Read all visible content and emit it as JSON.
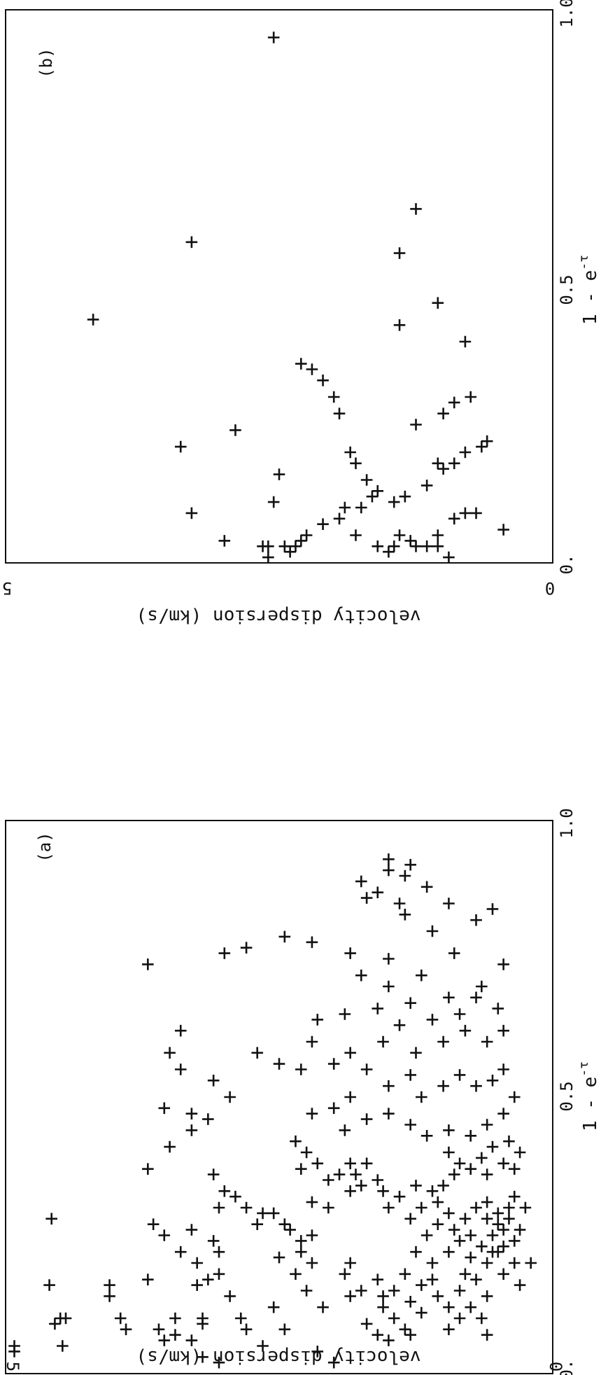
{
  "chart_data": [
    {
      "type": "scatter",
      "panel_label": "(a)",
      "xlabel": "1 - e^-τ",
      "xlabel_main": "1 - e",
      "xlabel_sup": "-τ",
      "ylabel": "velocity dispersion (km/s)",
      "xlim": [
        0,
        1
      ],
      "ylim": [
        0,
        5
      ],
      "x_tick_labels": [
        "0.",
        "0.5",
        "1.0"
      ],
      "y_tick_labels": [
        "0",
        "5"
      ],
      "points": [
        [
          0.04,
          4.92
        ],
        [
          0.05,
          4.92
        ],
        [
          0.09,
          4.55
        ],
        [
          0.1,
          4.5
        ],
        [
          0.1,
          4.45
        ],
        [
          0.05,
          4.48
        ],
        [
          0.16,
          4.6
        ],
        [
          0.28,
          4.58
        ],
        [
          0.14,
          4.05
        ],
        [
          0.16,
          4.05
        ],
        [
          0.1,
          3.95
        ],
        [
          0.08,
          3.9
        ],
        [
          0.17,
          3.7
        ],
        [
          0.08,
          3.6
        ],
        [
          0.06,
          3.55
        ],
        [
          0.1,
          3.45
        ],
        [
          0.07,
          3.45
        ],
        [
          0.1,
          3.2
        ],
        [
          0.17,
          3.15
        ],
        [
          0.09,
          3.2
        ],
        [
          0.16,
          3.25
        ],
        [
          0.06,
          3.3
        ],
        [
          0.03,
          3.2
        ],
        [
          0.02,
          3.05
        ],
        [
          0.14,
          2.95
        ],
        [
          0.1,
          2.85
        ],
        [
          0.08,
          2.8
        ],
        [
          0.05,
          2.65
        ],
        [
          0.12,
          2.55
        ],
        [
          0.08,
          2.45
        ],
        [
          0.15,
          2.25
        ],
        [
          0.18,
          2.35
        ],
        [
          0.2,
          2.2
        ],
        [
          0.04,
          2.15
        ],
        [
          0.12,
          2.1
        ],
        [
          0.02,
          2.0
        ],
        [
          0.3,
          2.8
        ],
        [
          0.29,
          2.55
        ],
        [
          0.27,
          2.7
        ],
        [
          0.29,
          2.65
        ],
        [
          0.27,
          2.45
        ],
        [
          0.21,
          2.5
        ],
        [
          0.26,
          2.4
        ],
        [
          0.22,
          2.3
        ],
        [
          0.31,
          2.2
        ],
        [
          0.3,
          2.05
        ],
        [
          0.24,
          2.3
        ],
        [
          0.25,
          2.2
        ],
        [
          0.18,
          1.9
        ],
        [
          0.14,
          1.85
        ],
        [
          0.2,
          1.85
        ],
        [
          0.15,
          1.75
        ],
        [
          0.09,
          1.7
        ],
        [
          0.07,
          1.6
        ],
        [
          0.12,
          1.55
        ],
        [
          0.06,
          1.5
        ],
        [
          0.17,
          1.6
        ],
        [
          0.14,
          1.55
        ],
        [
          0.15,
          1.45
        ],
        [
          0.1,
          1.45
        ],
        [
          0.08,
          1.35
        ],
        [
          0.07,
          1.3
        ],
        [
          0.13,
          1.3
        ],
        [
          0.11,
          1.2
        ],
        [
          0.16,
          1.2
        ],
        [
          0.17,
          1.1
        ],
        [
          0.2,
          1.1
        ],
        [
          0.14,
          1.05
        ],
        [
          0.12,
          0.95
        ],
        [
          0.08,
          0.95
        ],
        [
          0.1,
          0.85
        ],
        [
          0.15,
          0.85
        ],
        [
          0.18,
          0.8
        ],
        [
          0.21,
          0.75
        ],
        [
          0.17,
          0.7
        ],
        [
          0.12,
          0.75
        ],
        [
          0.1,
          0.65
        ],
        [
          0.07,
          0.6
        ],
        [
          0.14,
          0.6
        ],
        [
          0.2,
          0.6
        ],
        [
          0.25,
          0.55
        ],
        [
          0.22,
          0.5
        ],
        [
          0.18,
          0.45
        ],
        [
          0.23,
          0.45
        ],
        [
          0.27,
          0.5
        ],
        [
          0.28,
          0.4
        ],
        [
          0.24,
          0.35
        ],
        [
          0.2,
          0.35
        ],
        [
          0.16,
          0.3
        ],
        [
          0.2,
          0.2
        ],
        [
          0.26,
          0.3
        ],
        [
          0.3,
          0.25
        ],
        [
          0.18,
          1.35
        ],
        [
          0.22,
          1.25
        ],
        [
          0.25,
          1.15
        ],
        [
          0.27,
          1.05
        ],
        [
          0.22,
          0.95
        ],
        [
          0.26,
          0.9
        ],
        [
          0.28,
          0.8
        ],
        [
          0.3,
          0.7
        ],
        [
          0.31,
          0.6
        ],
        [
          0.25,
          0.75
        ],
        [
          0.23,
          0.65
        ],
        [
          0.28,
          0.6
        ],
        [
          0.29,
          0.5
        ],
        [
          0.26,
          0.45
        ],
        [
          0.3,
          0.4
        ],
        [
          0.32,
          0.35
        ],
        [
          0.22,
          0.55
        ],
        [
          0.24,
          0.85
        ],
        [
          0.29,
          0.95
        ],
        [
          0.31,
          1.05
        ],
        [
          0.3,
          1.2
        ],
        [
          0.33,
          1.1
        ],
        [
          0.28,
          1.3
        ],
        [
          0.34,
          1.25
        ],
        [
          0.32,
          1.4
        ],
        [
          0.3,
          1.5
        ],
        [
          0.33,
          1.55
        ],
        [
          0.35,
          1.6
        ],
        [
          0.34,
          1.75
        ],
        [
          0.36,
          1.8
        ],
        [
          0.38,
          1.7
        ],
        [
          0.33,
          1.85
        ],
        [
          0.36,
          1.95
        ],
        [
          0.38,
          1.85
        ],
        [
          0.35,
          2.05
        ],
        [
          0.38,
          2.15
        ],
        [
          0.4,
          2.25
        ],
        [
          0.37,
          2.3
        ],
        [
          0.42,
          2.35
        ],
        [
          0.34,
          1.0
        ],
        [
          0.36,
          0.9
        ],
        [
          0.38,
          0.85
        ],
        [
          0.4,
          0.95
        ],
        [
          0.37,
          0.75
        ],
        [
          0.39,
          0.65
        ],
        [
          0.36,
          0.6
        ],
        [
          0.41,
          0.55
        ],
        [
          0.38,
          0.45
        ],
        [
          0.42,
          0.4
        ],
        [
          0.37,
          0.35
        ],
        [
          0.4,
          0.3
        ],
        [
          0.44,
          0.95
        ],
        [
          0.43,
          0.75
        ],
        [
          0.45,
          0.6
        ],
        [
          0.47,
          0.45
        ],
        [
          0.43,
          1.15
        ],
        [
          0.45,
          1.3
        ],
        [
          0.47,
          1.5
        ],
        [
          0.46,
          1.7
        ],
        [
          0.44,
          1.9
        ],
        [
          0.48,
          2.0
        ],
        [
          0.47,
          2.2
        ],
        [
          0.5,
          1.85
        ],
        [
          0.52,
          1.5
        ],
        [
          0.5,
          1.2
        ],
        [
          0.52,
          1.0
        ],
        [
          0.54,
          0.85
        ],
        [
          0.52,
          0.7
        ],
        [
          0.53,
          0.55
        ],
        [
          0.55,
          0.45
        ],
        [
          0.5,
          0.35
        ],
        [
          0.54,
          1.3
        ],
        [
          0.55,
          1.7
        ],
        [
          0.56,
          2.0
        ],
        [
          0.55,
          2.3
        ],
        [
          0.56,
          2.5
        ],
        [
          0.58,
          2.7
        ],
        [
          0.6,
          2.2
        ],
        [
          0.58,
          1.85
        ],
        [
          0.6,
          1.55
        ],
        [
          0.58,
          1.25
        ],
        [
          0.6,
          1.0
        ],
        [
          0.62,
          0.8
        ],
        [
          0.6,
          0.6
        ],
        [
          0.62,
          0.45
        ],
        [
          0.65,
          0.85
        ],
        [
          0.64,
          1.1
        ],
        [
          0.63,
          1.4
        ],
        [
          0.66,
          1.6
        ],
        [
          0.65,
          1.9
        ],
        [
          0.64,
          2.15
        ],
        [
          0.66,
          0.5
        ],
        [
          0.68,
          0.7
        ],
        [
          0.68,
          0.95
        ],
        [
          0.67,
          1.3
        ],
        [
          0.7,
          1.5
        ],
        [
          0.72,
          1.2
        ],
        [
          0.7,
          0.65
        ],
        [
          0.74,
          0.45
        ],
        [
          0.76,
          0.9
        ],
        [
          0.8,
          1.1
        ],
        [
          0.82,
          0.7
        ],
        [
          0.84,
          0.55
        ],
        [
          0.83,
          1.35
        ],
        [
          0.85,
          1.4
        ],
        [
          0.86,
          1.7
        ],
        [
          0.87,
          1.6
        ],
        [
          0.89,
          1.75
        ],
        [
          0.9,
          1.35
        ],
        [
          0.91,
          1.5
        ],
        [
          0.93,
          1.5
        ],
        [
          0.92,
          1.3
        ],
        [
          0.88,
          1.15
        ],
        [
          0.85,
          0.95
        ],
        [
          0.72,
          1.75
        ],
        [
          0.75,
          1.5
        ],
        [
          0.76,
          1.85
        ],
        [
          0.78,
          2.2
        ],
        [
          0.79,
          2.45
        ],
        [
          0.77,
          2.8
        ],
        [
          0.76,
          3.0
        ],
        [
          0.74,
          3.7
        ],
        [
          0.62,
          3.4
        ],
        [
          0.58,
          3.5
        ],
        [
          0.55,
          3.4
        ],
        [
          0.53,
          3.1
        ],
        [
          0.5,
          2.95
        ],
        [
          0.46,
          3.15
        ],
        [
          0.47,
          3.3
        ],
        [
          0.44,
          3.3
        ],
        [
          0.41,
          3.5
        ],
        [
          0.37,
          3.7
        ],
        [
          0.48,
          3.55
        ],
        [
          0.36,
          3.1
        ],
        [
          0.33,
          3.0
        ],
        [
          0.32,
          2.9
        ],
        [
          0.3,
          3.05
        ],
        [
          0.26,
          3.3
        ],
        [
          0.24,
          3.1
        ],
        [
          0.22,
          3.05
        ],
        [
          0.2,
          3.25
        ],
        [
          0.18,
          3.05
        ],
        [
          0.22,
          3.4
        ],
        [
          0.25,
          3.55
        ],
        [
          0.27,
          3.65
        ]
      ]
    },
    {
      "type": "scatter",
      "panel_label": "(b)",
      "xlabel": "1 - e^-τ",
      "xlabel_main": "1 - e",
      "xlabel_sup": "-τ",
      "ylabel": "velocity dispersion (km/s)",
      "xlim": [
        0,
        1
      ],
      "ylim": [
        0,
        5
      ],
      "x_tick_labels": [
        "0.",
        "0.5",
        "1.0"
      ],
      "y_tick_labels": [
        "0",
        "5"
      ],
      "points": [
        [
          0.95,
          2.55
        ],
        [
          0.58,
          3.3
        ],
        [
          0.44,
          4.2
        ],
        [
          0.64,
          1.25
        ],
        [
          0.56,
          1.4
        ],
        [
          0.47,
          1.05
        ],
        [
          0.43,
          1.4
        ],
        [
          0.4,
          0.8
        ],
        [
          0.36,
          2.3
        ],
        [
          0.35,
          2.2
        ],
        [
          0.33,
          2.1
        ],
        [
          0.3,
          2.0
        ],
        [
          0.27,
          1.95
        ],
        [
          0.24,
          2.9
        ],
        [
          0.21,
          3.4
        ],
        [
          0.2,
          1.85
        ],
        [
          0.18,
          1.8
        ],
        [
          0.16,
          2.5
        ],
        [
          0.15,
          1.7
        ],
        [
          0.13,
          1.6
        ],
        [
          0.11,
          2.55
        ],
        [
          0.09,
          3.3
        ],
        [
          0.04,
          3.0
        ],
        [
          0.01,
          2.6
        ],
        [
          0.03,
          2.6
        ],
        [
          0.03,
          2.65
        ],
        [
          0.03,
          2.45
        ],
        [
          0.03,
          2.35
        ],
        [
          0.02,
          2.4
        ],
        [
          0.04,
          2.3
        ],
        [
          0.05,
          2.25
        ],
        [
          0.07,
          2.1
        ],
        [
          0.08,
          1.95
        ],
        [
          0.1,
          1.75
        ],
        [
          0.12,
          1.65
        ],
        [
          0.05,
          1.8
        ],
        [
          0.03,
          1.6
        ],
        [
          0.02,
          1.5
        ],
        [
          0.03,
          1.45
        ],
        [
          0.04,
          1.3
        ],
        [
          0.03,
          1.25
        ],
        [
          0.05,
          1.4
        ],
        [
          0.03,
          1.15
        ],
        [
          0.03,
          1.05
        ],
        [
          0.05,
          1.05
        ],
        [
          0.01,
          0.95
        ],
        [
          0.06,
          0.45
        ],
        [
          0.08,
          0.9
        ],
        [
          0.09,
          0.7
        ],
        [
          0.09,
          0.8
        ],
        [
          0.1,
          1.9
        ],
        [
          0.11,
          1.45
        ],
        [
          0.12,
          1.35
        ],
        [
          0.14,
          1.15
        ],
        [
          0.17,
          1.0
        ],
        [
          0.18,
          0.9
        ],
        [
          0.18,
          1.05
        ],
        [
          0.2,
          0.8
        ],
        [
          0.21,
          0.65
        ],
        [
          0.22,
          0.6
        ],
        [
          0.25,
          1.25
        ],
        [
          0.27,
          1.0
        ],
        [
          0.29,
          0.9
        ],
        [
          0.3,
          0.75
        ]
      ]
    }
  ]
}
